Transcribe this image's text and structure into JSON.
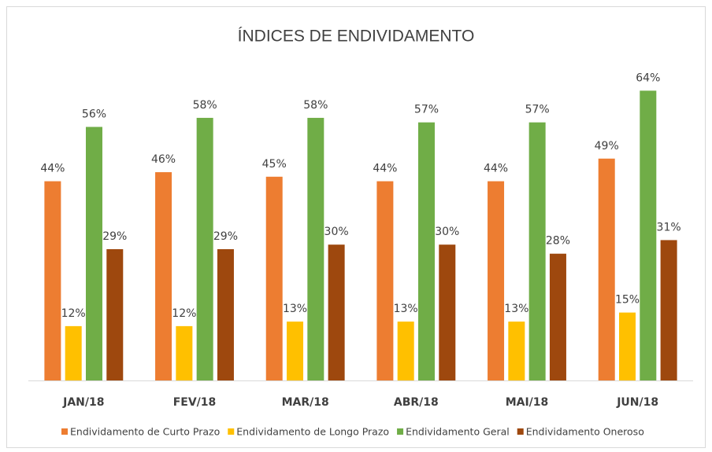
{
  "chart_data": {
    "type": "bar",
    "title": "ÍNDICES DE ENDIVIDAMENTO",
    "categories": [
      "JAN/18",
      "FEV/18",
      "MAR/18",
      "ABR/18",
      "MAI/18",
      "JUN/18"
    ],
    "series": [
      {
        "name": "Endividamento de Curto Prazo",
        "color": "#ED7D31",
        "values": [
          44,
          46,
          45,
          44,
          44,
          49
        ],
        "value_labels": [
          "44%",
          "46%",
          "45%",
          "44%",
          "44%",
          "49%"
        ]
      },
      {
        "name": "Endividamento de Longo Prazo",
        "color": "#FFC000",
        "values": [
          12,
          12,
          13,
          13,
          13,
          15
        ],
        "value_labels": [
          "12%",
          "12%",
          "13%",
          "13%",
          "13%",
          "15%"
        ]
      },
      {
        "name": "Endividamento Geral",
        "color": "#70AD47",
        "values": [
          56,
          58,
          58,
          57,
          57,
          64
        ],
        "value_labels": [
          "56%",
          "58%",
          "58%",
          "57%",
          "57%",
          "64%"
        ]
      },
      {
        "name": "Endividamento Oneroso",
        "color": "#9E480E",
        "values": [
          29,
          29,
          30,
          30,
          28,
          31
        ],
        "value_labels": [
          "29%",
          "29%",
          "30%",
          "30%",
          "28%",
          "31%"
        ]
      }
    ],
    "legend": "bottom"
  }
}
